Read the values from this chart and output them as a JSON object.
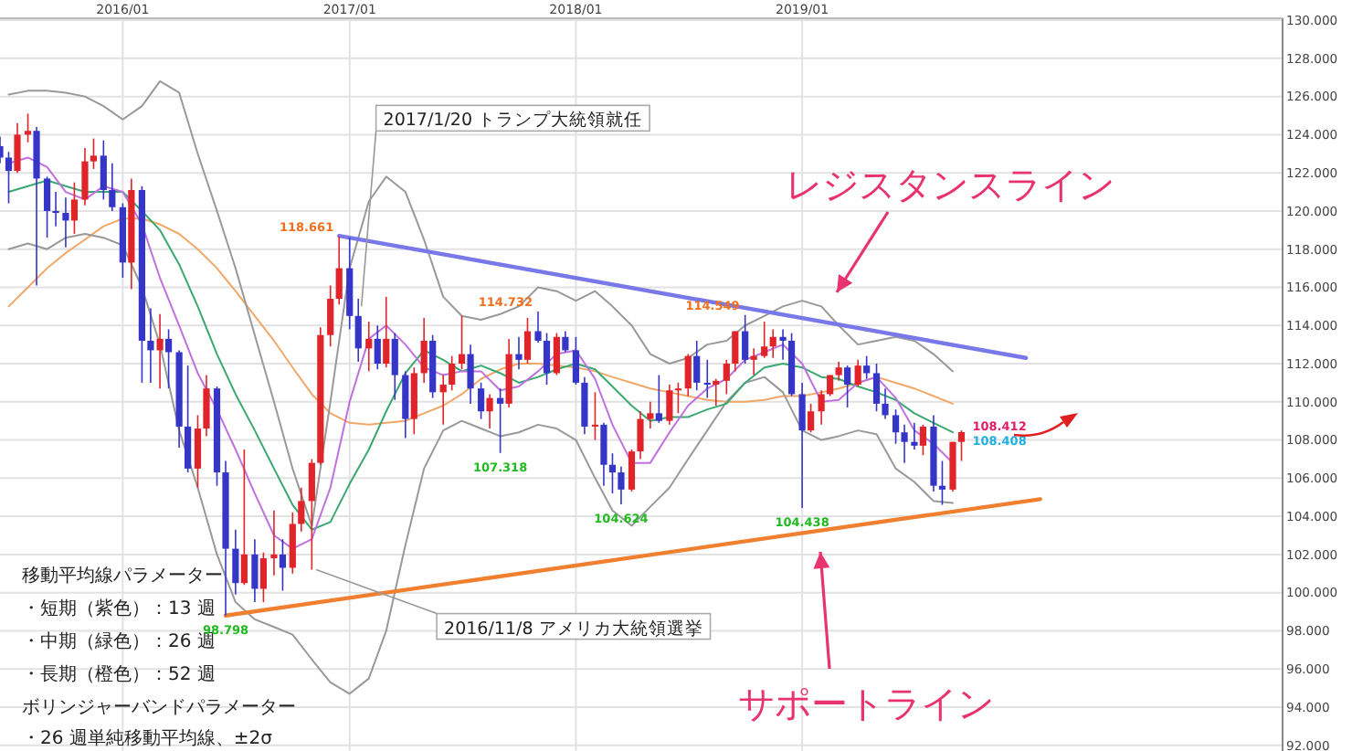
{
  "chart_data": {
    "type": "candlestick",
    "xlim": [
      "2015-06-17",
      "2021-02-14"
    ],
    "ylim": [
      91.7,
      130.1
    ],
    "grid": true,
    "xticks": [
      {
        "value": "2016-01",
        "label": "2016/01"
      },
      {
        "value": "2017-01",
        "label": "2017/01"
      },
      {
        "value": "2018-01",
        "label": "2018/01"
      },
      {
        "value": "2019-01",
        "label": "2019/01"
      }
    ],
    "yticks": [
      {
        "value": 92,
        "label": "92.000"
      },
      {
        "value": 94,
        "label": "94.000"
      },
      {
        "value": 96,
        "label": "96.000"
      },
      {
        "value": 98,
        "label": "98.000"
      },
      {
        "value": 100,
        "label": "100.000"
      },
      {
        "value": 102,
        "label": "102.000"
      },
      {
        "value": 104,
        "label": "104.000"
      },
      {
        "value": 106,
        "label": "106.000"
      },
      {
        "value": 108,
        "label": "108.000"
      },
      {
        "value": 110,
        "label": "110.000"
      },
      {
        "value": 112,
        "label": "112.000"
      },
      {
        "value": 114,
        "label": "114.000"
      },
      {
        "value": 116,
        "label": "116.000"
      },
      {
        "value": 118,
        "label": "118.000"
      },
      {
        "value": 120,
        "label": "120.000"
      },
      {
        "value": 122,
        "label": "122.000"
      },
      {
        "value": 124,
        "label": "124.000"
      },
      {
        "value": 126,
        "label": "126.000"
      },
      {
        "value": 128,
        "label": "128.000"
      },
      {
        "value": 130,
        "label": "130.000"
      }
    ],
    "x": [
      "2015-07",
      "2015-08",
      "2015-09",
      "2015-10",
      "2015-11",
      "2015-12",
      "2016-01",
      "2016-02",
      "2016-03",
      "2016-04",
      "2016-05",
      "2016-06",
      "2016-07",
      "2016-08",
      "2016-09",
      "2016-10",
      "2016-11",
      "2016-12",
      "2017-01",
      "2017-02",
      "2017-03",
      "2017-04",
      "2017-05",
      "2017-06",
      "2017-07",
      "2017-08",
      "2017-09",
      "2017-10",
      "2017-11",
      "2017-12",
      "2018-01",
      "2018-02",
      "2018-03",
      "2018-04",
      "2018-05",
      "2018-06",
      "2018-07",
      "2018-08",
      "2018-09",
      "2018-10",
      "2018-11",
      "2018-12",
      "2019-01",
      "2019-02",
      "2019-03",
      "2019-04",
      "2019-05",
      "2019-06",
      "2019-07",
      "2019-08",
      "2019-09"
    ],
    "series": [
      {
        "type": "line",
        "color": "#f0a868",
        "values": [
          115.0,
          116.0,
          117.0,
          117.8,
          118.5,
          119.2,
          119.6,
          119.6,
          119.3,
          118.8,
          118.0,
          117.0,
          115.8,
          114.5,
          113.2,
          111.8,
          110.4,
          109.4,
          108.9,
          108.8,
          108.9,
          109.0,
          109.4,
          109.8,
          110.4,
          111.2,
          111.7,
          112.0,
          112.0,
          111.9,
          111.8,
          111.6,
          111.3,
          111.0,
          110.7,
          110.5,
          110.3,
          110.1,
          110.0,
          110.0,
          110.1,
          110.3,
          110.3,
          110.5,
          110.7,
          111.0,
          111.3,
          111.0,
          110.7,
          110.3,
          109.9
        ]
      },
      {
        "type": "line",
        "color": "#999999",
        "values": [
          126.1,
          126.3,
          126.3,
          126.2,
          126.0,
          125.5,
          124.8,
          125.5,
          126.8,
          126.2,
          123.0,
          120.0,
          117.0,
          113.5,
          110.0,
          106.5,
          103.5,
          110.0,
          117.0,
          120.5,
          121.8,
          121.0,
          118.5,
          115.5,
          114.5,
          114.3,
          114.6,
          115.0,
          116.0,
          115.8,
          115.3,
          115.8,
          115.0,
          114.0,
          112.5,
          112.0,
          112.3,
          113.0,
          113.2,
          114.0,
          114.5,
          115.0,
          115.3,
          115.0,
          114.0,
          113.0,
          113.2,
          113.4,
          113.2,
          112.5,
          111.6
        ]
      },
      {
        "type": "line",
        "color": "#999999",
        "values": [
          118.0,
          118.3,
          118.0,
          118.6,
          118.8,
          118.6,
          118.2,
          116.0,
          113.0,
          108.5,
          105.5,
          102.0,
          99.5,
          98.6,
          98.2,
          97.8,
          96.5,
          95.3,
          94.7,
          95.5,
          98.0,
          102.5,
          106.5,
          108.5,
          109.0,
          108.6,
          108.2,
          108.4,
          108.8,
          108.6,
          108.0,
          106.0,
          104.3,
          103.5,
          104.5,
          105.5,
          107.0,
          108.5,
          110.0,
          111.0,
          111.3,
          110.5,
          108.5,
          108.0,
          108.2,
          108.5,
          108.3,
          106.5,
          105.8,
          104.8,
          104.7
        ]
      },
      {
        "type": "line",
        "color": "#3aa870",
        "values": [
          121.0,
          121.3,
          121.6,
          121.3,
          121.0,
          121.0,
          121.0,
          120.0,
          119.0,
          117.2,
          115.0,
          112.5,
          110.4,
          108.5,
          106.5,
          104.6,
          103.3,
          103.7,
          105.7,
          107.5,
          109.5,
          111.5,
          112.7,
          112.2,
          111.6,
          111.9,
          111.5,
          111.0,
          111.3,
          111.7,
          112.0,
          111.7,
          110.8,
          109.8,
          109.0,
          109.2,
          109.2,
          109.6,
          109.9,
          111.0,
          111.8,
          112.0,
          111.8,
          111.3,
          111.2,
          110.8,
          110.5,
          110.1,
          109.4,
          108.9,
          108.4
        ]
      },
      {
        "type": "line",
        "color": "#c070e0",
        "values": [
          122.5,
          122.8,
          122.3,
          121.0,
          120.6,
          121.3,
          121.0,
          119.3,
          116.5,
          114.0,
          111.5,
          109.6,
          107.5,
          105.2,
          103.0,
          102.3,
          102.8,
          105.5,
          110.0,
          113.3,
          114.0,
          113.0,
          111.8,
          111.4,
          111.6,
          111.6,
          110.6,
          110.8,
          111.6,
          112.5,
          112.7,
          111.2,
          108.8,
          106.8,
          106.8,
          108.4,
          109.8,
          110.7,
          111.2,
          112.2,
          112.6,
          113.0,
          112.0,
          110.0,
          110.1,
          111.0,
          111.3,
          110.2,
          108.5,
          107.8,
          106.8
        ]
      },
      {
        "type": "candlestick",
        "x": [
          "2015-06-17",
          "2015-07-01",
          "2015-07-15",
          "2015-08-01",
          "2015-08-15",
          "2015-09-01",
          "2015-09-15",
          "2015-10-01",
          "2015-10-15",
          "2015-11-01",
          "2015-11-15",
          "2015-12-01",
          "2015-12-15",
          "2016-01-01",
          "2016-01-15",
          "2016-02-01",
          "2016-02-15",
          "2016-03-01",
          "2016-03-15",
          "2016-04-01",
          "2016-04-15",
          "2016-05-01",
          "2016-05-15",
          "2016-06-01",
          "2016-06-15",
          "2016-07-01",
          "2016-07-15",
          "2016-08-01",
          "2016-08-15",
          "2016-09-01",
          "2016-09-15",
          "2016-10-01",
          "2016-10-15",
          "2016-11-01",
          "2016-11-15",
          "2016-12-01",
          "2016-12-15",
          "2017-01-01",
          "2017-01-15",
          "2017-02-01",
          "2017-02-15",
          "2017-03-01",
          "2017-03-15",
          "2017-04-01",
          "2017-04-15",
          "2017-05-01",
          "2017-05-15",
          "2017-06-01",
          "2017-06-15",
          "2017-07-01",
          "2017-07-15",
          "2017-08-01",
          "2017-08-15",
          "2017-09-01",
          "2017-09-15",
          "2017-10-01",
          "2017-10-15",
          "2017-11-01",
          "2017-11-15",
          "2017-12-01",
          "2017-12-15",
          "2018-01-01",
          "2018-01-15",
          "2018-02-01",
          "2018-02-15",
          "2018-03-01",
          "2018-03-15",
          "2018-04-01",
          "2018-04-15",
          "2018-05-01",
          "2018-05-15",
          "2018-06-01",
          "2018-06-15",
          "2018-07-01",
          "2018-07-15",
          "2018-08-01",
          "2018-08-15",
          "2018-09-01",
          "2018-09-15",
          "2018-10-01",
          "2018-10-15",
          "2018-11-01",
          "2018-11-15",
          "2018-12-01",
          "2018-12-15",
          "2019-01-01",
          "2019-01-15",
          "2019-02-01",
          "2019-02-15",
          "2019-03-01",
          "2019-03-15",
          "2019-04-01",
          "2019-04-15",
          "2019-05-01",
          "2019-05-15",
          "2019-06-01",
          "2019-06-15",
          "2019-07-01",
          "2019-07-15",
          "2019-08-01",
          "2019-08-15",
          "2019-09-01",
          "2019-09-15"
        ],
        "ohlc": [
          [
            123.4,
            123.9,
            122.5,
            122.8
          ],
          [
            122.8,
            123.1,
            120.4,
            122.1
          ],
          [
            122.1,
            124.6,
            122.0,
            124.0
          ],
          [
            124.0,
            125.1,
            123.6,
            124.2
          ],
          [
            124.2,
            124.4,
            116.1,
            121.7
          ],
          [
            121.7,
            121.8,
            118.6,
            120.0
          ],
          [
            120.0,
            121.0,
            119.2,
            119.9
          ],
          [
            119.9,
            120.7,
            118.1,
            119.5
          ],
          [
            119.5,
            121.5,
            118.8,
            120.6
          ],
          [
            120.6,
            123.3,
            120.3,
            122.6
          ],
          [
            122.6,
            123.8,
            122.2,
            122.9
          ],
          [
            122.9,
            123.7,
            120.6,
            121.1
          ],
          [
            121.1,
            122.5,
            120.0,
            120.2
          ],
          [
            120.2,
            120.4,
            116.5,
            117.3
          ],
          [
            117.3,
            121.7,
            115.9,
            121.1
          ],
          [
            121.1,
            121.3,
            111.0,
            113.2
          ],
          [
            113.2,
            114.9,
            111.0,
            112.7
          ],
          [
            112.7,
            114.6,
            110.7,
            113.3
          ],
          [
            113.3,
            113.8,
            110.7,
            112.6
          ],
          [
            112.6,
            112.7,
            107.6,
            108.7
          ],
          [
            108.7,
            111.9,
            106.3,
            106.5
          ],
          [
            106.5,
            109.3,
            105.5,
            108.6
          ],
          [
            108.6,
            111.4,
            108.2,
            110.7
          ],
          [
            110.7,
            110.8,
            105.6,
            106.3
          ],
          [
            106.3,
            106.9,
            98.798,
            102.3
          ],
          [
            102.3,
            103.3,
            99.9,
            100.5
          ],
          [
            100.5,
            107.5,
            100.4,
            102.0
          ],
          [
            102.0,
            102.8,
            99.5,
            100.2
          ],
          [
            100.2,
            102.1,
            99.5,
            101.8
          ],
          [
            101.8,
            104.3,
            100.9,
            102.0
          ],
          [
            102.0,
            102.8,
            100.1,
            101.3
          ],
          [
            101.3,
            104.2,
            101.0,
            103.6
          ],
          [
            103.6,
            105.5,
            103.2,
            104.8
          ],
          [
            104.8,
            107.0,
            101.2,
            106.8
          ],
          [
            106.8,
            113.9,
            106.7,
            113.5
          ],
          [
            113.5,
            116.1,
            112.9,
            115.4
          ],
          [
            115.4,
            118.661,
            115.1,
            117.0
          ],
          [
            117.0,
            118.6,
            113.8,
            114.5
          ],
          [
            114.5,
            115.4,
            112.1,
            112.8
          ],
          [
            112.8,
            114.2,
            111.6,
            113.3
          ],
          [
            113.3,
            114.0,
            111.7,
            112.0
          ],
          [
            112.0,
            115.5,
            111.8,
            113.3
          ],
          [
            113.3,
            113.6,
            110.1,
            111.4
          ],
          [
            111.4,
            111.6,
            108.1,
            109.1
          ],
          [
            109.1,
            111.8,
            108.3,
            111.5
          ],
          [
            111.5,
            114.4,
            111.0,
            113.2
          ],
          [
            113.2,
            113.5,
            110.2,
            110.5
          ],
          [
            110.5,
            111.4,
            108.8,
            110.9
          ],
          [
            110.9,
            112.4,
            110.6,
            112.0
          ],
          [
            112.0,
            114.5,
            111.7,
            112.5
          ],
          [
            112.5,
            113.0,
            109.9,
            110.7
          ],
          [
            110.7,
            111.0,
            109.1,
            109.5
          ],
          [
            109.5,
            110.4,
            108.6,
            110.2
          ],
          [
            110.2,
            110.7,
            107.318,
            109.9
          ],
          [
            109.9,
            113.3,
            109.7,
            112.5
          ],
          [
            112.5,
            113.4,
            111.7,
            112.2
          ],
          [
            112.2,
            114.4,
            112.0,
            113.7
          ],
          [
            113.7,
            114.732,
            113.1,
            113.2
          ],
          [
            113.2,
            113.6,
            110.9,
            111.5
          ],
          [
            111.5,
            113.6,
            111.4,
            113.4
          ],
          [
            113.4,
            113.7,
            112.6,
            112.7
          ],
          [
            112.7,
            113.4,
            110.9,
            111.0
          ],
          [
            111.0,
            111.3,
            108.3,
            108.7
          ],
          [
            108.7,
            110.5,
            108.0,
            108.8
          ],
          [
            108.8,
            108.9,
            105.6,
            106.7
          ],
          [
            106.7,
            107.3,
            105.2,
            106.3
          ],
          [
            106.3,
            106.6,
            104.624,
            105.4
          ],
          [
            105.4,
            107.5,
            105.3,
            107.4
          ],
          [
            107.4,
            109.5,
            107.0,
            109.1
          ],
          [
            109.1,
            110.0,
            108.6,
            109.4
          ],
          [
            109.4,
            111.4,
            108.9,
            109.0
          ],
          [
            109.0,
            110.9,
            108.8,
            110.6
          ],
          [
            110.6,
            111.0,
            109.4,
            110.7
          ],
          [
            110.7,
            112.5,
            110.3,
            112.4
          ],
          [
            112.4,
            113.2,
            110.6,
            111.0
          ],
          [
            111.0,
            112.2,
            110.2,
            110.9
          ],
          [
            110.9,
            111.2,
            109.8,
            111.1
          ],
          [
            111.1,
            112.2,
            110.4,
            112.0
          ],
          [
            112.0,
            113.7,
            111.6,
            113.7
          ],
          [
            113.7,
            114.549,
            112.0,
            112.2
          ],
          [
            112.2,
            112.8,
            111.4,
            112.4
          ],
          [
            112.4,
            114.2,
            112.3,
            112.9
          ],
          [
            112.9,
            113.8,
            112.3,
            113.4
          ],
          [
            113.4,
            113.8,
            112.2,
            113.2
          ],
          [
            113.2,
            113.6,
            110.3,
            110.4
          ],
          [
            110.4,
            111.0,
            104.438,
            108.5
          ],
          [
            108.5,
            109.9,
            108.4,
            109.5
          ],
          [
            109.5,
            110.6,
            108.8,
            110.4
          ],
          [
            110.4,
            111.4,
            110.3,
            111.4
          ],
          [
            111.4,
            112.1,
            111.1,
            111.8
          ],
          [
            111.8,
            111.9,
            109.7,
            110.9
          ],
          [
            110.9,
            112.2,
            110.8,
            111.9
          ],
          [
            111.9,
            112.4,
            111.2,
            111.5
          ],
          [
            111.5,
            112.0,
            109.5,
            109.9
          ],
          [
            109.9,
            110.7,
            109.1,
            109.3
          ],
          [
            109.3,
            109.6,
            107.8,
            108.4
          ],
          [
            108.4,
            108.8,
            106.8,
            107.9
          ],
          [
            107.9,
            108.9,
            107.5,
            107.7
          ],
          [
            107.7,
            108.8,
            107.2,
            108.7
          ],
          [
            108.7,
            109.3,
            105.3,
            105.6
          ],
          [
            105.6,
            106.9,
            104.6,
            105.4
          ],
          [
            105.4,
            107.9,
            105.3,
            107.9
          ],
          [
            107.9,
            108.5,
            106.9,
            108.412
          ]
        ],
        "colors": [
          "#3535c8",
          "#3535c8",
          "#e0242a",
          "#e0242a",
          "#3535c8",
          "#3535c8",
          "#3535c8",
          "#3535c8",
          "#e0242a",
          "#e0242a",
          "#e0242a",
          "#3535c8",
          "#3535c8",
          "#3535c8",
          "#e0242a",
          "#3535c8",
          "#3535c8",
          "#e0242a",
          "#3535c8",
          "#3535c8",
          "#3535c8",
          "#e0242a",
          "#e0242a",
          "#3535c8",
          "#3535c8",
          "#3535c8",
          "#e0242a",
          "#3535c8",
          "#e0242a",
          "#e0242a",
          "#3535c8",
          "#e0242a",
          "#e0242a",
          "#e0242a",
          "#e0242a",
          "#e0242a",
          "#e0242a",
          "#3535c8",
          "#3535c8",
          "#e0242a",
          "#3535c8",
          "#e0242a",
          "#3535c8",
          "#3535c8",
          "#e0242a",
          "#e0242a",
          "#3535c8",
          "#e0242a",
          "#e0242a",
          "#e0242a",
          "#3535c8",
          "#3535c8",
          "#e0242a",
          "#3535c8",
          "#e0242a",
          "#3535c8",
          "#e0242a",
          "#3535c8",
          "#3535c8",
          "#e0242a",
          "#3535c8",
          "#3535c8",
          "#3535c8",
          "#e0242a",
          "#3535c8",
          "#3535c8",
          "#3535c8",
          "#e0242a",
          "#e0242a",
          "#e0242a",
          "#3535c8",
          "#e0242a",
          "#e0242a",
          "#e0242a",
          "#3535c8",
          "#3535c8",
          "#e0242a",
          "#e0242a",
          "#e0242a",
          "#3535c8",
          "#e0242a",
          "#e0242a",
          "#e0242a",
          "#3535c8",
          "#3535c8",
          "#3535c8",
          "#e0242a",
          "#e0242a",
          "#e0242a",
          "#e0242a",
          "#3535c8",
          "#e0242a",
          "#3535c8",
          "#3535c8",
          "#3535c8",
          "#3535c8",
          "#3535c8",
          "#3535c8",
          "#e0242a",
          "#3535c8",
          "#3535c8",
          "#e0242a",
          "#e0242a"
        ]
      },
      {
        "type": "line",
        "color": "#7878e8",
        "x": [
          "2016-12-15",
          "2019-12-28"
        ],
        "values": [
          118.7,
          112.3
        ]
      },
      {
        "type": "line",
        "color": "#f08030",
        "x": [
          "2016-06-15",
          "2020-01-20"
        ],
        "values": [
          98.8,
          104.9
        ]
      }
    ],
    "annotations": [
      "移動平均線パラメーター",
      "・短期（紫色）：13 週",
      "・中期（緑色）：26 週",
      "・長期（橙色）：52 週",
      "ボリンジャーバンドパラメーター",
      "・26 週単純移動平均線、±2σ",
      "レジスタンスライン",
      "サポートライン",
      {
        "text": "2017/1/20 トランプ大統領就任",
        "x": "2017-01-20",
        "y": 115.0
      },
      {
        "text": "2016/11/8 アメリカ大統領選挙",
        "x": "2016-11-08",
        "y": 101.2
      },
      {
        "text": "118.661",
        "x": "2016-12-15",
        "y": 118.661
      },
      {
        "text": "114.732",
        "x": "2017-11-01",
        "y": 114.732
      },
      {
        "text": "114.549",
        "x": "2018-10-01",
        "y": 114.549
      },
      {
        "text": "98.798",
        "x": "2016-06-15",
        "y": 98.798
      },
      {
        "text": "107.318",
        "x": "2017-09-01",
        "y": 107.318
      },
      {
        "text": "104.624",
        "x": "2018-03-15",
        "y": 104.624
      },
      {
        "text": "104.438",
        "x": "2019-01-01",
        "y": 104.438
      },
      {
        "text": "108.412",
        "x": "2019-09-15",
        "y": 108.412
      },
      {
        "text": "108.408",
        "x": "2019-09-15",
        "y": 108.408
      }
    ]
  }
}
